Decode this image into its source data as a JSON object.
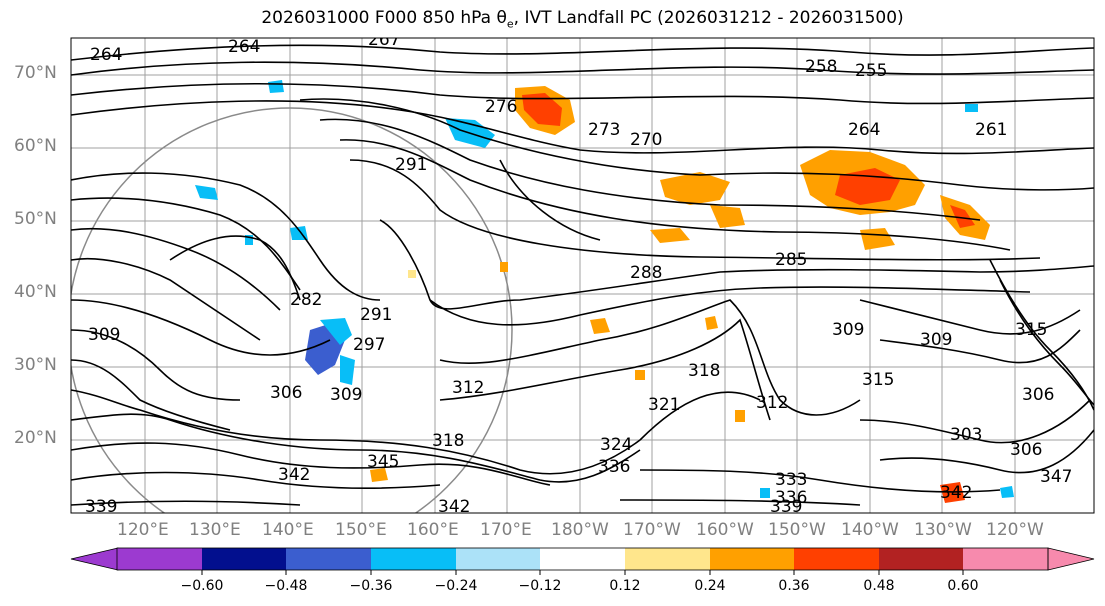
{
  "title_main": "2026031000 F000 850 hPa θ",
  "title_sub": "e",
  "title_tail": ", IVT Landfall PC (2026031212 - 2026031500)",
  "lat_labels": [
    "70°N",
    "60°N",
    "50°N",
    "40°N",
    "30°N",
    "20°N"
  ],
  "lon_labels": [
    "120°E",
    "130°E",
    "140°E",
    "150°E",
    "160°E",
    "170°E",
    "180°W",
    "170°W",
    "160°W",
    "150°W",
    "140°W",
    "130°W",
    "120°W"
  ],
  "contour_labels": [
    "264",
    "264",
    "267",
    "258",
    "255",
    "264",
    "261",
    "276",
    "273",
    "270",
    "291",
    "288",
    "285",
    "282",
    "291",
    "297",
    "306",
    "309",
    "309",
    "315",
    "312",
    "318",
    "321",
    "324",
    "306",
    "303",
    "306",
    "309",
    "309",
    "312",
    "318",
    "315",
    "336",
    "342",
    "345",
    "339",
    "342",
    "333",
    "336",
    "339",
    "342",
    "347"
  ],
  "colorbar": {
    "ticks": [
      "−0.60",
      "−0.48",
      "−0.36",
      "−0.24",
      "−0.12",
      "0.12",
      "0.24",
      "0.36",
      "0.48",
      "0.60"
    ],
    "colors": [
      "#9c3ad0",
      "#020f8e",
      "#3b5ecf",
      "#08bef7",
      "#ace2f8",
      "#ffffff",
      "#ffe68c",
      "#ffa000",
      "#ff4000",
      "#b22222",
      "#f78aad"
    ]
  },
  "colors": {
    "contour": "#000000",
    "grid": "#808080",
    "tick_label": "#808080"
  }
}
